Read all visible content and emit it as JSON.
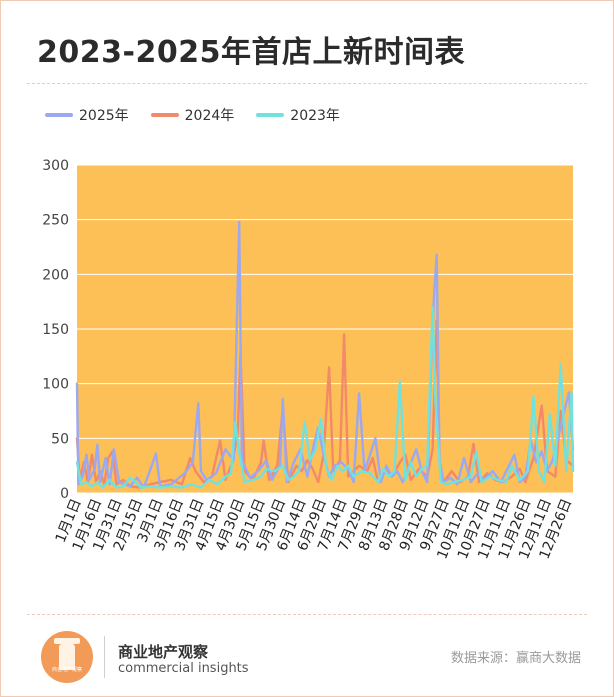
{
  "title": "2023-2025年首店上新时间表",
  "source": "数据来源：赢商大数据",
  "brand": {
    "cn": "商业地产观察",
    "en": "commercial insights",
    "logo_text": "商业地产观察"
  },
  "colors": {
    "background_plot": "#fcc057",
    "s2025": "#9aa9f0",
    "s2024": "#f28a6a",
    "s2023": "#6fe2e0",
    "grid": "#ffffff"
  },
  "chart_data": {
    "type": "line",
    "title": "2023-2025年首店上新时间表",
    "xlabel": "",
    "ylabel": "",
    "ylim": [
      0,
      300
    ],
    "yticks": [
      0,
      50,
      100,
      150,
      200,
      250,
      300
    ],
    "xtick_labels": [
      "1月1日",
      "1月16日",
      "1月31日",
      "2月15日",
      "3月1日",
      "3月16日",
      "3月31日",
      "4月15日",
      "4月30日",
      "5月15日",
      "5月30日",
      "6月14日",
      "6月29日",
      "7月14日",
      "7月29日",
      "8月13日",
      "8月28日",
      "9月12日",
      "9月27日",
      "10月12日",
      "10月27日",
      "11月11日",
      "11月26日",
      "12月11日",
      "12月26日"
    ],
    "x_range_days": [
      1,
      365
    ],
    "grid": true,
    "legend_position": "top-left",
    "series": [
      {
        "name": "2025年",
        "color": "#9aa9f0",
        "points": [
          [
            1,
            100
          ],
          [
            2,
            8
          ],
          [
            5,
            15
          ],
          [
            8,
            35
          ],
          [
            10,
            12
          ],
          [
            14,
            22
          ],
          [
            16,
            44
          ],
          [
            18,
            10
          ],
          [
            22,
            32
          ],
          [
            25,
            8
          ],
          [
            28,
            40
          ],
          [
            32,
            10
          ],
          [
            40,
            6
          ],
          [
            45,
            14
          ],
          [
            50,
            5
          ],
          [
            59,
            36
          ],
          [
            62,
            6
          ],
          [
            70,
            8
          ],
          [
            80,
            18
          ],
          [
            86,
            28
          ],
          [
            90,
            82
          ],
          [
            92,
            20
          ],
          [
            96,
            12
          ],
          [
            103,
            18
          ],
          [
            110,
            40
          ],
          [
            116,
            30
          ],
          [
            120,
            248
          ],
          [
            122,
            30
          ],
          [
            128,
            14
          ],
          [
            134,
            20
          ],
          [
            140,
            30
          ],
          [
            144,
            12
          ],
          [
            150,
            25
          ],
          [
            152,
            86
          ],
          [
            155,
            10
          ],
          [
            160,
            28
          ],
          [
            165,
            40
          ],
          [
            170,
            15
          ],
          [
            175,
            45
          ],
          [
            178,
            60
          ],
          [
            182,
            35
          ],
          [
            186,
            15
          ],
          [
            190,
            25
          ],
          [
            195,
            28
          ],
          [
            200,
            22
          ],
          [
            204,
            10
          ],
          [
            208,
            91
          ],
          [
            212,
            20
          ],
          [
            216,
            35
          ],
          [
            220,
            50
          ],
          [
            224,
            10
          ],
          [
            228,
            25
          ],
          [
            232,
            15
          ],
          [
            236,
            20
          ],
          [
            240,
            10
          ],
          [
            245,
            25
          ],
          [
            250,
            40
          ],
          [
            254,
            20
          ],
          [
            258,
            10
          ],
          [
            261,
            122
          ],
          [
            263,
            180
          ],
          [
            265,
            218
          ],
          [
            267,
            30
          ],
          [
            270,
            10
          ],
          [
            275,
            14
          ],
          [
            280,
            8
          ],
          [
            285,
            32
          ],
          [
            290,
            10
          ],
          [
            295,
            18
          ],
          [
            300,
            12
          ],
          [
            306,
            20
          ],
          [
            312,
            10
          ],
          [
            318,
            25
          ],
          [
            322,
            35
          ],
          [
            326,
            10
          ],
          [
            330,
            15
          ],
          [
            334,
            48
          ],
          [
            338,
            28
          ],
          [
            342,
            38
          ],
          [
            346,
            20
          ],
          [
            350,
            30
          ],
          [
            354,
            50
          ],
          [
            358,
            72
          ],
          [
            362,
            92
          ],
          [
            365,
            40
          ]
        ]
      },
      {
        "name": "2024年",
        "color": "#f28a6a",
        "points": [
          [
            1,
            50
          ],
          [
            3,
            12
          ],
          [
            6,
            28
          ],
          [
            9,
            10
          ],
          [
            12,
            35
          ],
          [
            15,
            10
          ],
          [
            18,
            20
          ],
          [
            21,
            8
          ],
          [
            24,
            32
          ],
          [
            27,
            38
          ],
          [
            30,
            8
          ],
          [
            35,
            12
          ],
          [
            40,
            6
          ],
          [
            48,
            5
          ],
          [
            55,
            8
          ],
          [
            62,
            10
          ],
          [
            70,
            12
          ],
          [
            78,
            8
          ],
          [
            84,
            32
          ],
          [
            88,
            20
          ],
          [
            94,
            10
          ],
          [
            100,
            15
          ],
          [
            106,
            48
          ],
          [
            110,
            12
          ],
          [
            115,
            28
          ],
          [
            119,
            55
          ],
          [
            121,
            128
          ],
          [
            124,
            20
          ],
          [
            130,
            12
          ],
          [
            136,
            28
          ],
          [
            138,
            48
          ],
          [
            142,
            12
          ],
          [
            148,
            25
          ],
          [
            152,
            78
          ],
          [
            156,
            10
          ],
          [
            162,
            25
          ],
          [
            166,
            20
          ],
          [
            170,
            30
          ],
          [
            174,
            22
          ],
          [
            178,
            10
          ],
          [
            182,
            35
          ],
          [
            186,
            115
          ],
          [
            189,
            20
          ],
          [
            194,
            30
          ],
          [
            197,
            145
          ],
          [
            200,
            15
          ],
          [
            204,
            20
          ],
          [
            208,
            25
          ],
          [
            214,
            20
          ],
          [
            218,
            32
          ],
          [
            222,
            10
          ],
          [
            228,
            22
          ],
          [
            232,
            15
          ],
          [
            238,
            28
          ],
          [
            242,
            35
          ],
          [
            246,
            12
          ],
          [
            252,
            22
          ],
          [
            258,
            15
          ],
          [
            262,
            40
          ],
          [
            265,
            158
          ],
          [
            267,
            30
          ],
          [
            270,
            10
          ],
          [
            276,
            20
          ],
          [
            282,
            10
          ],
          [
            288,
            15
          ],
          [
            292,
            45
          ],
          [
            296,
            10
          ],
          [
            302,
            18
          ],
          [
            308,
            12
          ],
          [
            314,
            10
          ],
          [
            320,
            15
          ],
          [
            326,
            22
          ],
          [
            330,
            10
          ],
          [
            336,
            32
          ],
          [
            342,
            80
          ],
          [
            346,
            20
          ],
          [
            352,
            15
          ],
          [
            356,
            75
          ],
          [
            360,
            30
          ],
          [
            365,
            25
          ]
        ]
      },
      {
        "name": "2023年",
        "color": "#6fe2e0",
        "points": [
          [
            1,
            28
          ],
          [
            4,
            8
          ],
          [
            8,
            10
          ],
          [
            12,
            6
          ],
          [
            16,
            10
          ],
          [
            20,
            5
          ],
          [
            25,
            12
          ],
          [
            30,
            5
          ],
          [
            35,
            6
          ],
          [
            40,
            14
          ],
          [
            44,
            10
          ],
          [
            48,
            5
          ],
          [
            55,
            6
          ],
          [
            62,
            5
          ],
          [
            70,
            6
          ],
          [
            78,
            5
          ],
          [
            85,
            8
          ],
          [
            92,
            5
          ],
          [
            98,
            12
          ],
          [
            104,
            8
          ],
          [
            110,
            15
          ],
          [
            114,
            18
          ],
          [
            117,
            65
          ],
          [
            120,
            38
          ],
          [
            124,
            10
          ],
          [
            130,
            12
          ],
          [
            136,
            15
          ],
          [
            140,
            22
          ],
          [
            146,
            20
          ],
          [
            152,
            25
          ],
          [
            156,
            12
          ],
          [
            160,
            15
          ],
          [
            164,
            20
          ],
          [
            168,
            65
          ],
          [
            172,
            30
          ],
          [
            176,
            40
          ],
          [
            180,
            68
          ],
          [
            184,
            22
          ],
          [
            188,
            12
          ],
          [
            192,
            25
          ],
          [
            196,
            20
          ],
          [
            200,
            25
          ],
          [
            204,
            15
          ],
          [
            210,
            20
          ],
          [
            216,
            18
          ],
          [
            222,
            10
          ],
          [
            226,
            22
          ],
          [
            230,
            15
          ],
          [
            234,
            20
          ],
          [
            238,
            102
          ],
          [
            242,
            12
          ],
          [
            246,
            28
          ],
          [
            250,
            15
          ],
          [
            254,
            22
          ],
          [
            258,
            25
          ],
          [
            262,
            170
          ],
          [
            264,
            85
          ],
          [
            268,
            10
          ],
          [
            272,
            8
          ],
          [
            278,
            10
          ],
          [
            284,
            12
          ],
          [
            290,
            15
          ],
          [
            294,
            38
          ],
          [
            298,
            10
          ],
          [
            304,
            15
          ],
          [
            310,
            12
          ],
          [
            316,
            10
          ],
          [
            320,
            25
          ],
          [
            326,
            12
          ],
          [
            332,
            20
          ],
          [
            336,
            88
          ],
          [
            340,
            20
          ],
          [
            344,
            10
          ],
          [
            348,
            72
          ],
          [
            352,
            25
          ],
          [
            356,
            118
          ],
          [
            360,
            20
          ],
          [
            364,
            92
          ],
          [
            365,
            20
          ]
        ]
      }
    ]
  }
}
